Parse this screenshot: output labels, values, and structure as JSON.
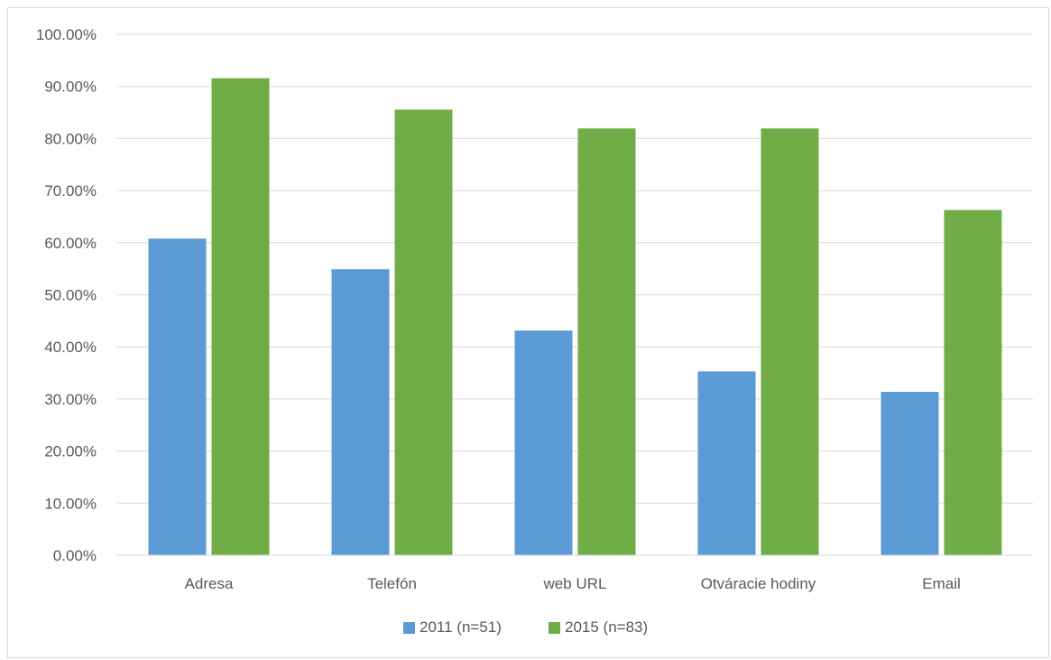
{
  "chart_data": {
    "type": "bar",
    "title": "",
    "xlabel": "",
    "ylabel": "",
    "categories": [
      "Adresa",
      "Telefón",
      "web URL",
      "Otváracie hodiny",
      "Email"
    ],
    "series": [
      {
        "name": "2011 (n=51)",
        "color": "#5b9bd5",
        "values": [
          60.78,
          54.9,
          43.14,
          35.29,
          31.37
        ]
      },
      {
        "name": "2015 (n=83)",
        "color": "#70ad47",
        "values": [
          91.57,
          85.54,
          81.93,
          81.93,
          66.27
        ]
      }
    ],
    "ylim": [
      0,
      100
    ],
    "yticks": [
      "0.00%",
      "10.00%",
      "20.00%",
      "30.00%",
      "40.00%",
      "50.00%",
      "60.00%",
      "70.00%",
      "80.00%",
      "90.00%",
      "100.00%"
    ],
    "grid": true,
    "legend_position": "bottom"
  }
}
